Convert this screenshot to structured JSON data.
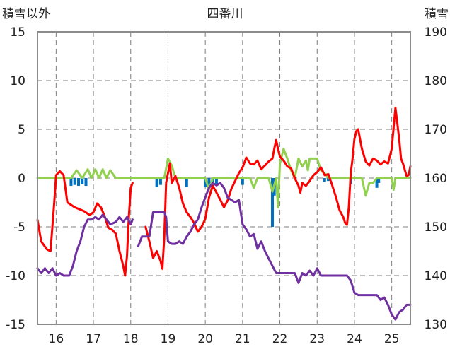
{
  "chart_data": {
    "type": "line",
    "title": "四番川",
    "ylabel_left": "積雪以外",
    "ylabel_right": "積雪",
    "x_ticks": [
      "16",
      "17",
      "18",
      "19",
      "20",
      "21",
      "22",
      "23",
      "24",
      "25"
    ],
    "xlim": [
      15.5,
      25.5
    ],
    "left_axis": {
      "range": [
        -15,
        15
      ],
      "ticks": [
        15,
        10,
        5,
        0,
        -5,
        -10,
        -15
      ]
    },
    "right_axis": {
      "range": [
        130,
        190
      ],
      "ticks": [
        190,
        180,
        170,
        160,
        150,
        140,
        130
      ]
    },
    "grid": {
      "x": "dashed",
      "y": "dashed"
    },
    "colors": {
      "red": "#ff0000",
      "green": "#92d050",
      "purple": "#7030a0",
      "blue": "#0070c0",
      "grid": "#7f7f7f",
      "frame": "#8c8c8c"
    },
    "series": [
      {
        "color_key": "red",
        "axis": "left",
        "points": [
          [
            15.5,
            -4.3
          ],
          [
            15.6,
            -6.5
          ],
          [
            15.75,
            -7.3
          ],
          [
            15.85,
            -7.5
          ],
          [
            15.95,
            -2.5
          ],
          [
            16.0,
            0.3
          ],
          [
            16.1,
            0.7
          ],
          [
            16.2,
            0.3
          ],
          [
            16.3,
            -2.5
          ],
          [
            16.5,
            -3.0
          ],
          [
            16.75,
            -3.4
          ],
          [
            16.9,
            -3.8
          ],
          [
            17.0,
            -3.5
          ],
          [
            17.1,
            -2.6
          ],
          [
            17.2,
            -3.0
          ],
          [
            17.3,
            -3.9
          ],
          [
            17.4,
            -5.1
          ],
          [
            17.5,
            -5.3
          ],
          [
            17.6,
            -5.7
          ],
          [
            17.7,
            -7.5
          ],
          [
            17.8,
            -9.0
          ],
          [
            17.85,
            -10.0
          ],
          [
            17.9,
            -8.0
          ],
          [
            17.95,
            -4.0
          ],
          [
            18.0,
            -1.0
          ],
          [
            18.05,
            -0.5
          ]
        ]
      },
      {
        "color_key": "red",
        "axis": "left",
        "points": [
          [
            18.4,
            -5.0
          ],
          [
            18.5,
            -6.5
          ],
          [
            18.6,
            -8.2
          ],
          [
            18.7,
            -7.5
          ],
          [
            18.8,
            -8.5
          ],
          [
            18.85,
            -9.3
          ],
          [
            18.9,
            -6.0
          ],
          [
            18.95,
            -0.5
          ],
          [
            19.0,
            0.5
          ],
          [
            19.05,
            1.5
          ],
          [
            19.1,
            -0.5
          ],
          [
            19.2,
            0.2
          ],
          [
            19.3,
            -1.0
          ],
          [
            19.4,
            -2.6
          ],
          [
            19.5,
            -3.5
          ],
          [
            19.6,
            -4.0
          ],
          [
            19.7,
            -4.6
          ],
          [
            19.8,
            -5.5
          ],
          [
            19.9,
            -5.0
          ],
          [
            20.0,
            -4.2
          ],
          [
            20.1,
            -2.0
          ],
          [
            20.2,
            -0.8
          ],
          [
            20.3,
            -1.5
          ],
          [
            20.4,
            -2.2
          ],
          [
            20.5,
            -3.0
          ],
          [
            20.6,
            -2.3
          ],
          [
            20.7,
            -1.1
          ],
          [
            20.8,
            -0.3
          ],
          [
            20.9,
            0.5
          ],
          [
            21.0,
            1.1
          ],
          [
            21.1,
            2.1
          ],
          [
            21.2,
            1.5
          ],
          [
            21.3,
            1.4
          ],
          [
            21.4,
            1.8
          ],
          [
            21.5,
            0.9
          ],
          [
            21.6,
            1.3
          ],
          [
            21.7,
            1.7
          ],
          [
            21.8,
            2.0
          ],
          [
            21.85,
            3.0
          ],
          [
            21.9,
            3.9
          ],
          [
            21.95,
            3.0
          ],
          [
            22.0,
            2.2
          ],
          [
            22.1,
            1.8
          ],
          [
            22.2,
            1.2
          ],
          [
            22.3,
            1.0
          ],
          [
            22.4,
            0.0
          ],
          [
            22.5,
            -0.8
          ],
          [
            22.55,
            -1.5
          ],
          [
            22.6,
            -0.5
          ],
          [
            22.7,
            -0.8
          ],
          [
            22.8,
            -0.3
          ],
          [
            22.9,
            0.3
          ],
          [
            23.0,
            0.6
          ],
          [
            23.1,
            1.1
          ],
          [
            23.2,
            0.3
          ],
          [
            23.3,
            0.4
          ],
          [
            23.4,
            -0.7
          ],
          [
            23.5,
            -1.9
          ],
          [
            23.6,
            -3.3
          ],
          [
            23.7,
            -4.0
          ],
          [
            23.75,
            -4.6
          ],
          [
            23.8,
            -4.8
          ],
          [
            23.85,
            -3.0
          ],
          [
            23.9,
            0.5
          ],
          [
            23.95,
            2.0
          ],
          [
            24.0,
            4.0
          ],
          [
            24.05,
            4.8
          ],
          [
            24.1,
            5.0
          ],
          [
            24.2,
            3.0
          ],
          [
            24.3,
            1.7
          ],
          [
            24.4,
            1.3
          ],
          [
            24.5,
            2.0
          ],
          [
            24.6,
            1.8
          ],
          [
            24.7,
            1.4
          ],
          [
            24.8,
            1.7
          ],
          [
            24.9,
            1.5
          ],
          [
            25.0,
            3.0
          ],
          [
            25.1,
            7.2
          ],
          [
            25.2,
            4.0
          ],
          [
            25.25,
            2.0
          ],
          [
            25.3,
            1.5
          ],
          [
            25.4,
            0.2
          ],
          [
            25.45,
            0.3
          ],
          [
            25.5,
            1.2
          ]
        ]
      },
      {
        "color_key": "green",
        "axis": "left",
        "points": [
          [
            15.5,
            0
          ],
          [
            16.4,
            0
          ],
          [
            16.55,
            0.8
          ],
          [
            16.7,
            0
          ],
          [
            16.85,
            0.9
          ],
          [
            16.95,
            0
          ],
          [
            17.05,
            0.9
          ],
          [
            17.15,
            0
          ],
          [
            17.25,
            0.9
          ],
          [
            17.35,
            0
          ],
          [
            17.45,
            0.8
          ],
          [
            17.6,
            0
          ],
          [
            18.9,
            0
          ],
          [
            19.0,
            2.0
          ],
          [
            19.1,
            1.3
          ],
          [
            19.2,
            0
          ],
          [
            20.0,
            0
          ],
          [
            20.1,
            -1.2
          ],
          [
            20.2,
            0
          ],
          [
            21.2,
            0
          ],
          [
            21.3,
            -1.0
          ],
          [
            21.4,
            0
          ],
          [
            21.7,
            0
          ],
          [
            21.8,
            -1.4
          ],
          [
            21.9,
            0
          ],
          [
            21.95,
            -3.0
          ],
          [
            22.0,
            1.5
          ],
          [
            22.1,
            3.0
          ],
          [
            22.2,
            2.0
          ],
          [
            22.3,
            0.8
          ],
          [
            22.4,
            0
          ],
          [
            22.5,
            2.0
          ],
          [
            22.6,
            1.2
          ],
          [
            22.7,
            1.8
          ],
          [
            22.75,
            0.8
          ],
          [
            22.8,
            2.0
          ],
          [
            22.9,
            2.0
          ],
          [
            23.0,
            2.0
          ],
          [
            23.1,
            0.8
          ],
          [
            23.2,
            0.5
          ],
          [
            23.3,
            0
          ],
          [
            24.2,
            0
          ],
          [
            24.3,
            -1.8
          ],
          [
            24.4,
            -0.5
          ],
          [
            24.5,
            -0.5
          ],
          [
            24.6,
            0
          ],
          [
            25.0,
            0
          ],
          [
            25.05,
            -1.2
          ],
          [
            25.1,
            0
          ],
          [
            25.5,
            0
          ]
        ]
      },
      {
        "color_key": "purple",
        "axis": "right",
        "points": [
          [
            15.5,
            141.5
          ],
          [
            15.6,
            140.5
          ],
          [
            15.7,
            141.5
          ],
          [
            15.8,
            140.5
          ],
          [
            15.9,
            141.5
          ],
          [
            16.0,
            140.0
          ],
          [
            16.1,
            140.5
          ],
          [
            16.2,
            140.0
          ],
          [
            16.35,
            140.0
          ],
          [
            16.45,
            142.0
          ],
          [
            16.55,
            145.0
          ],
          [
            16.65,
            147.0
          ],
          [
            16.75,
            150.0
          ],
          [
            16.85,
            151.5
          ],
          [
            16.95,
            151.5
          ],
          [
            17.05,
            152.0
          ],
          [
            17.15,
            151.5
          ],
          [
            17.25,
            152.5
          ],
          [
            17.35,
            151.5
          ],
          [
            17.45,
            150.5
          ],
          [
            17.6,
            151.0
          ],
          [
            17.7,
            152.0
          ],
          [
            17.8,
            151.0
          ],
          [
            17.9,
            152.0
          ],
          [
            18.0,
            150.5
          ],
          [
            18.05,
            151.5
          ]
        ]
      },
      {
        "color_key": "purple",
        "axis": "right",
        "points": [
          [
            18.2,
            146.0
          ],
          [
            18.3,
            148.0
          ],
          [
            18.4,
            148.0
          ],
          [
            18.5,
            148.0
          ],
          [
            18.6,
            153.0
          ],
          [
            18.7,
            153.0
          ],
          [
            18.8,
            153.0
          ],
          [
            18.9,
            153.0
          ],
          [
            18.95,
            152.0
          ],
          [
            19.0,
            147.0
          ],
          [
            19.1,
            146.5
          ],
          [
            19.2,
            146.5
          ],
          [
            19.3,
            147.0
          ],
          [
            19.4,
            146.5
          ],
          [
            19.5,
            148.0
          ],
          [
            19.6,
            149.0
          ],
          [
            19.7,
            150.5
          ],
          [
            19.8,
            151.5
          ],
          [
            19.9,
            154.0
          ],
          [
            20.0,
            156.0
          ],
          [
            20.1,
            158.0
          ],
          [
            20.2,
            159.0
          ],
          [
            20.3,
            158.5
          ],
          [
            20.4,
            159.0
          ],
          [
            20.5,
            158.0
          ],
          [
            20.6,
            156.0
          ],
          [
            20.7,
            155.5
          ],
          [
            20.8,
            155.0
          ],
          [
            20.9,
            155.5
          ],
          [
            21.0,
            150.5
          ],
          [
            21.1,
            149.5
          ],
          [
            21.2,
            148.0
          ],
          [
            21.3,
            148.5
          ],
          [
            21.4,
            145.5
          ],
          [
            21.5,
            147.0
          ],
          [
            21.6,
            145.0
          ],
          [
            21.7,
            143.5
          ],
          [
            21.8,
            142.0
          ],
          [
            21.9,
            140.5
          ],
          [
            22.0,
            140.5
          ],
          [
            22.2,
            140.5
          ],
          [
            22.4,
            140.5
          ],
          [
            22.5,
            138.5
          ],
          [
            22.6,
            140.5
          ],
          [
            22.7,
            140.0
          ],
          [
            22.8,
            141.0
          ],
          [
            22.9,
            140.0
          ],
          [
            23.0,
            141.5
          ],
          [
            23.1,
            140.0
          ],
          [
            23.2,
            140.0
          ],
          [
            23.3,
            140.0
          ],
          [
            23.4,
            140.0
          ],
          [
            23.5,
            140.0
          ],
          [
            23.6,
            140.0
          ],
          [
            23.7,
            140.0
          ],
          [
            23.8,
            140.0
          ],
          [
            23.9,
            139.0
          ],
          [
            24.0,
            136.5
          ],
          [
            24.1,
            136.0
          ],
          [
            24.3,
            136.0
          ],
          [
            24.5,
            136.0
          ],
          [
            24.6,
            136.0
          ],
          [
            24.7,
            135.0
          ],
          [
            24.8,
            135.5
          ],
          [
            24.9,
            134.0
          ],
          [
            25.0,
            132.0
          ],
          [
            25.1,
            131.0
          ],
          [
            25.2,
            132.5
          ],
          [
            25.3,
            133.0
          ],
          [
            25.4,
            134.0
          ],
          [
            25.5,
            134.0
          ]
        ]
      }
    ],
    "bars": {
      "color_key": "blue",
      "axis": "left",
      "data": [
        [
          16.4,
          -0.8
        ],
        [
          16.5,
          -0.7
        ],
        [
          16.6,
          -0.8
        ],
        [
          16.7,
          -0.6
        ],
        [
          16.8,
          -0.8
        ],
        [
          18.7,
          -0.9
        ],
        [
          18.8,
          -0.7
        ],
        [
          19.5,
          -0.9
        ],
        [
          20.0,
          -0.9
        ],
        [
          20.1,
          -0.8
        ],
        [
          20.2,
          -0.9
        ],
        [
          20.3,
          -0.7
        ],
        [
          21.0,
          -0.7
        ],
        [
          21.8,
          -5.0
        ],
        [
          21.85,
          -1.8
        ],
        [
          23.2,
          -0.4
        ],
        [
          23.3,
          -0.3
        ],
        [
          23.9,
          -0.6
        ],
        [
          24.6,
          -1.0
        ],
        [
          24.65,
          -0.5
        ]
      ]
    }
  }
}
